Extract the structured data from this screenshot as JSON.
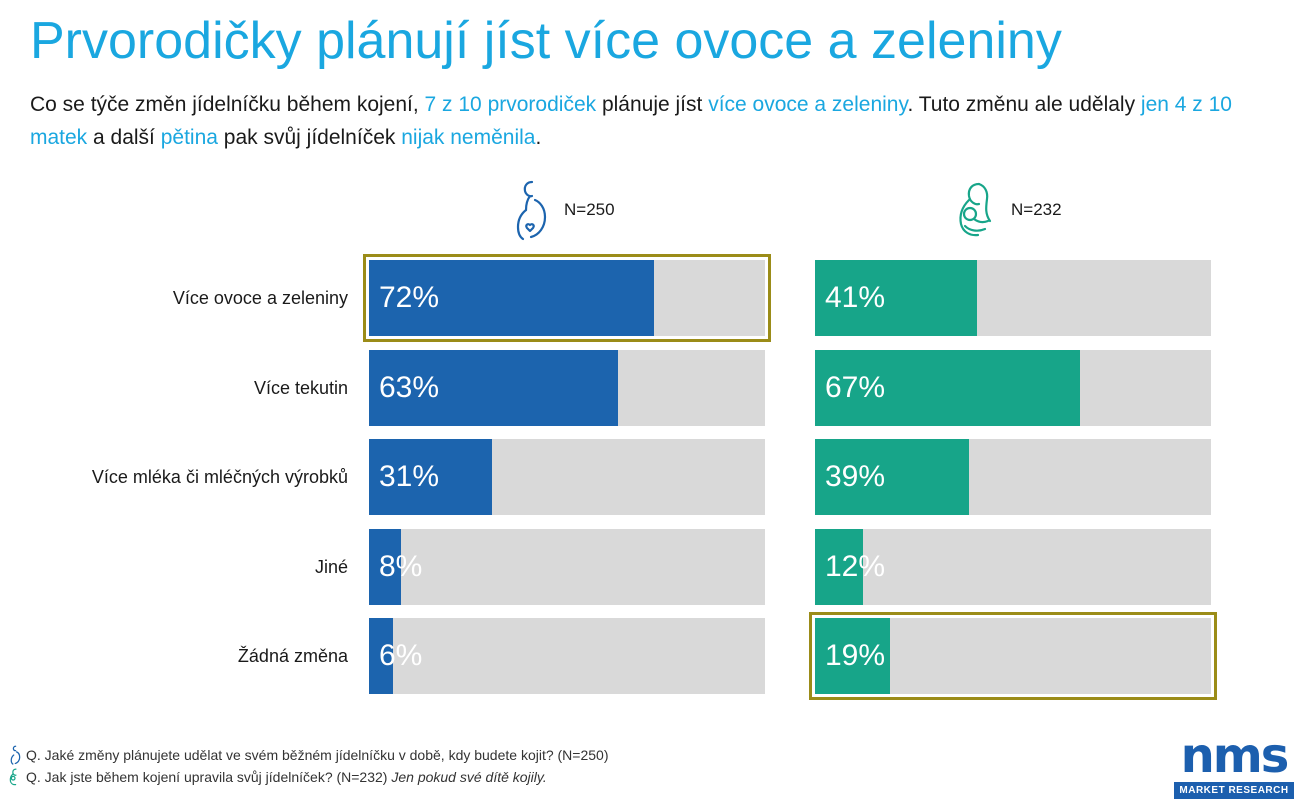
{
  "title": "Prvorodičky plánují jíst více ovoce a zeleniny",
  "subtitle": {
    "p1": "Co se týče změn jídelníčku během kojení, ",
    "h1": "7 z 10 prvorodiček",
    "p2": " plánuje jíst ",
    "h2": "více ovoce a zeleniny",
    "p3": ". Tuto změnu ale udělaly ",
    "h3": "jen 4 z 10 matek",
    "p4": " a další ",
    "h4": "pětina",
    "p5": " pak svůj jídelníček ",
    "h5": "nijak neměnila",
    "p6": "."
  },
  "colors": {
    "accent_text": "#1aa7e0",
    "series_pregnant": "#1c64ae",
    "series_mothers": "#17a589",
    "track": "#d9d9d9",
    "highlight_border": "#9b8c18"
  },
  "chart_data": {
    "type": "bar",
    "orientation": "horizontal",
    "unit": "%",
    "xlim": [
      0,
      100
    ],
    "grid": false,
    "categories": [
      "Více ovoce a zeleniny",
      "Více tekutin",
      "Více mléka či mléčných výrobků",
      "Jiné",
      "Žádná změna"
    ],
    "series": [
      {
        "sample": "N=250",
        "icon": "pregnant-woman-icon",
        "values": [
          72,
          63,
          31,
          8,
          6
        ],
        "labels": [
          "72%",
          "63%",
          "31%",
          "8%",
          "6%"
        ],
        "highlight_index": 0
      },
      {
        "sample": "N=232",
        "icon": "breastfeeding-mother-icon",
        "values": [
          41,
          67,
          39,
          12,
          19
        ],
        "labels": [
          "41%",
          "67%",
          "39%",
          "12%",
          "19%"
        ],
        "highlight_index": 4
      }
    ]
  },
  "footer": {
    "q1": "Q. Jaké změny plánujete udělat ve svém běžném jídelníčku v době, kdy budete kojit? (N=250)",
    "q2": "Q. Jak jste během kojení upravila svůj jídelníček? (N=232) ",
    "q2_note": "Jen pokud své dítě kojily."
  },
  "logo": {
    "name": "nms",
    "tagline": "MARKET RESEARCH"
  }
}
